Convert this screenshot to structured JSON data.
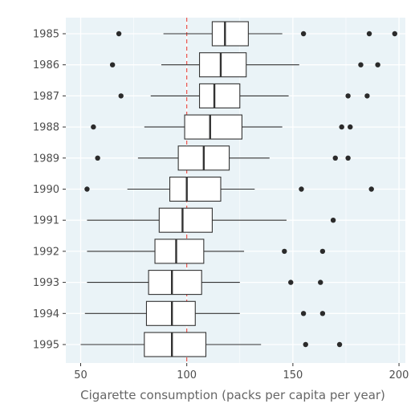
{
  "chart_data": {
    "type": "boxplot",
    "title": "",
    "xlabel": "Cigarette consumption (packs per capita per year)",
    "ylabel": "",
    "xlim": [
      43,
      203
    ],
    "xticks": [
      50,
      100,
      150,
      200
    ],
    "orientation": "horizontal",
    "reference_line": {
      "x": 100,
      "color": "#e8413b",
      "style": "dashed"
    },
    "panel_background": "#eaf3f7",
    "grid": true,
    "categories": [
      "1985",
      "1986",
      "1987",
      "1988",
      "1989",
      "1990",
      "1991",
      "1992",
      "1993",
      "1994",
      "1995"
    ],
    "boxes": [
      {
        "category": "1985",
        "whisker_low": 89,
        "q1": 112,
        "median": 118,
        "q3": 129,
        "whisker_high": 145,
        "outliers": [
          68,
          155,
          186,
          198
        ]
      },
      {
        "category": "1986",
        "whisker_low": 88,
        "q1": 106,
        "median": 116,
        "q3": 128,
        "whisker_high": 153,
        "outliers": [
          65,
          182,
          190
        ]
      },
      {
        "category": "1987",
        "whisker_low": 83,
        "q1": 106,
        "median": 113,
        "q3": 125,
        "whisker_high": 148,
        "outliers": [
          69,
          176,
          185
        ]
      },
      {
        "category": "1988",
        "whisker_low": 80,
        "q1": 99,
        "median": 111,
        "q3": 126,
        "whisker_high": 145,
        "outliers": [
          56,
          173,
          177
        ]
      },
      {
        "category": "1989",
        "whisker_low": 77,
        "q1": 96,
        "median": 108,
        "q3": 120,
        "whisker_high": 139,
        "outliers": [
          58,
          170,
          176
        ]
      },
      {
        "category": "1990",
        "whisker_low": 72,
        "q1": 92,
        "median": 100,
        "q3": 116,
        "whisker_high": 132,
        "outliers": [
          53,
          154,
          187
        ]
      },
      {
        "category": "1991",
        "whisker_low": 53,
        "q1": 87,
        "median": 98,
        "q3": 112,
        "whisker_high": 147,
        "outliers": [
          169
        ]
      },
      {
        "category": "1992",
        "whisker_low": 53,
        "q1": 85,
        "median": 95,
        "q3": 108,
        "whisker_high": 127,
        "outliers": [
          146,
          164
        ]
      },
      {
        "category": "1993",
        "whisker_low": 53,
        "q1": 82,
        "median": 93,
        "q3": 107,
        "whisker_high": 125,
        "outliers": [
          149,
          163
        ]
      },
      {
        "category": "1994",
        "whisker_low": 52,
        "q1": 81,
        "median": 93,
        "q3": 104,
        "whisker_high": 125,
        "outliers": [
          155,
          164
        ]
      },
      {
        "category": "1995",
        "whisker_low": 50,
        "q1": 80,
        "median": 93,
        "q3": 109,
        "whisker_high": 135,
        "outliers": [
          156,
          172
        ]
      }
    ]
  }
}
